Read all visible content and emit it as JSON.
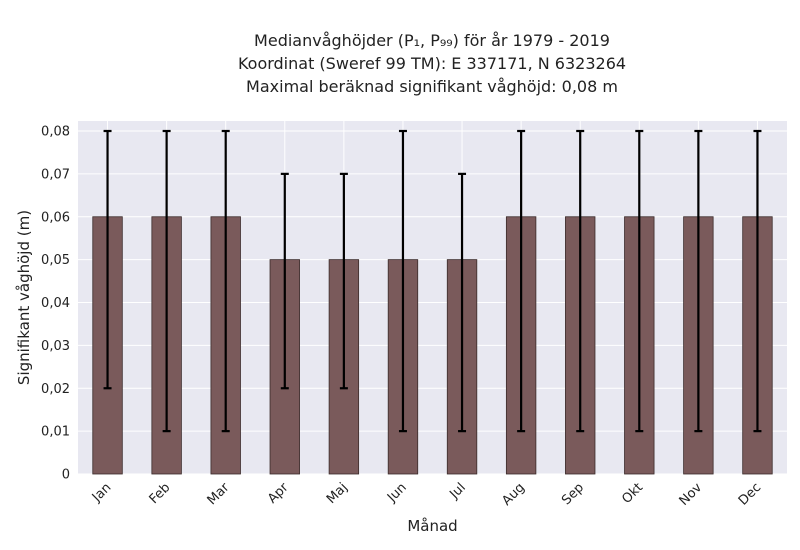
{
  "chart_data": {
    "type": "bar",
    "title_lines": [
      "Medianvåghöjder (P₁, P₉₉) för år 1979 - 2019",
      "Koordinat (Sweref 99 TM): E 337171, N 6323264",
      "Maximal beräknad signifikant våghöjd: 0,08 m"
    ],
    "xlabel": "Månad",
    "ylabel": "Signifikant våghöjd (m)",
    "categories": [
      "Jan",
      "Feb",
      "Mar",
      "Apr",
      "Maj",
      "Jun",
      "Jul",
      "Aug",
      "Sep",
      "Okt",
      "Nov",
      "Dec"
    ],
    "values": [
      0.06,
      0.06,
      0.06,
      0.05,
      0.05,
      0.05,
      0.05,
      0.06,
      0.06,
      0.06,
      0.06,
      0.06
    ],
    "p1": [
      0.02,
      0.01,
      0.01,
      0.02,
      0.02,
      0.01,
      0.01,
      0.01,
      0.01,
      0.01,
      0.01,
      0.01
    ],
    "p99": [
      0.08,
      0.08,
      0.08,
      0.07,
      0.07,
      0.08,
      0.07,
      0.08,
      0.08,
      0.08,
      0.08,
      0.08
    ],
    "ylim": [
      0,
      0.08
    ],
    "yticks": [
      0,
      0.01,
      0.02,
      0.03,
      0.04,
      0.05,
      0.06,
      0.07,
      0.08
    ],
    "ytick_labels": [
      "0",
      "0,01",
      "0,02",
      "0,03",
      "0,04",
      "0,05",
      "0,06",
      "0,07",
      "0,08"
    ],
    "grid": true,
    "colors": {
      "plot_background": "#e8e8f1",
      "bar": "#7a5a5b",
      "bar_edge": "#3a2a2a",
      "error_bar": "#000000"
    }
  }
}
